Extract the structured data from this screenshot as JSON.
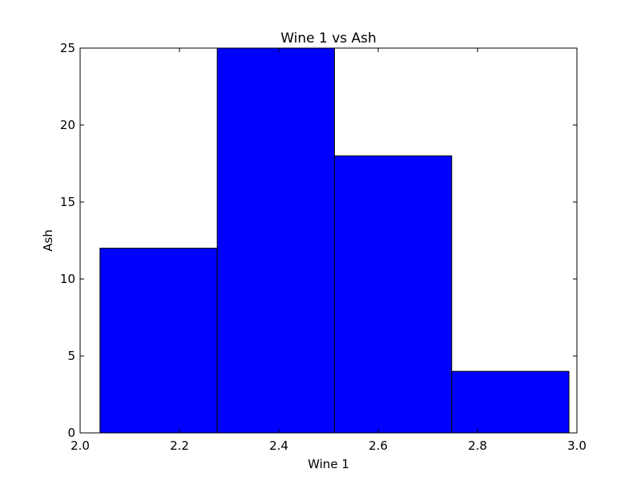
{
  "chart_data": {
    "type": "bar",
    "title": "Wine 1 vs Ash",
    "xlabel": "Wine 1",
    "ylabel": "Ash",
    "xlim": [
      2.0,
      3.0
    ],
    "ylim": [
      0,
      25
    ],
    "xticks": [
      2.0,
      2.2,
      2.4,
      2.6,
      2.8,
      3.0
    ],
    "xtick_labels": [
      "2.0",
      "2.2",
      "2.4",
      "2.6",
      "2.8",
      "3.0"
    ],
    "yticks": [
      0,
      5,
      10,
      15,
      20,
      25
    ],
    "ytick_labels": [
      "0",
      "5",
      "10",
      "15",
      "20",
      "25"
    ],
    "bins": [
      {
        "x0": 2.04,
        "x1": 2.276,
        "value": 12
      },
      {
        "x0": 2.276,
        "x1": 2.512,
        "value": 25
      },
      {
        "x0": 2.512,
        "x1": 2.748,
        "value": 18
      },
      {
        "x0": 2.748,
        "x1": 2.984,
        "value": 4
      }
    ],
    "bar_color": "#0000ff",
    "edge_color": "#000000",
    "grid": false
  }
}
